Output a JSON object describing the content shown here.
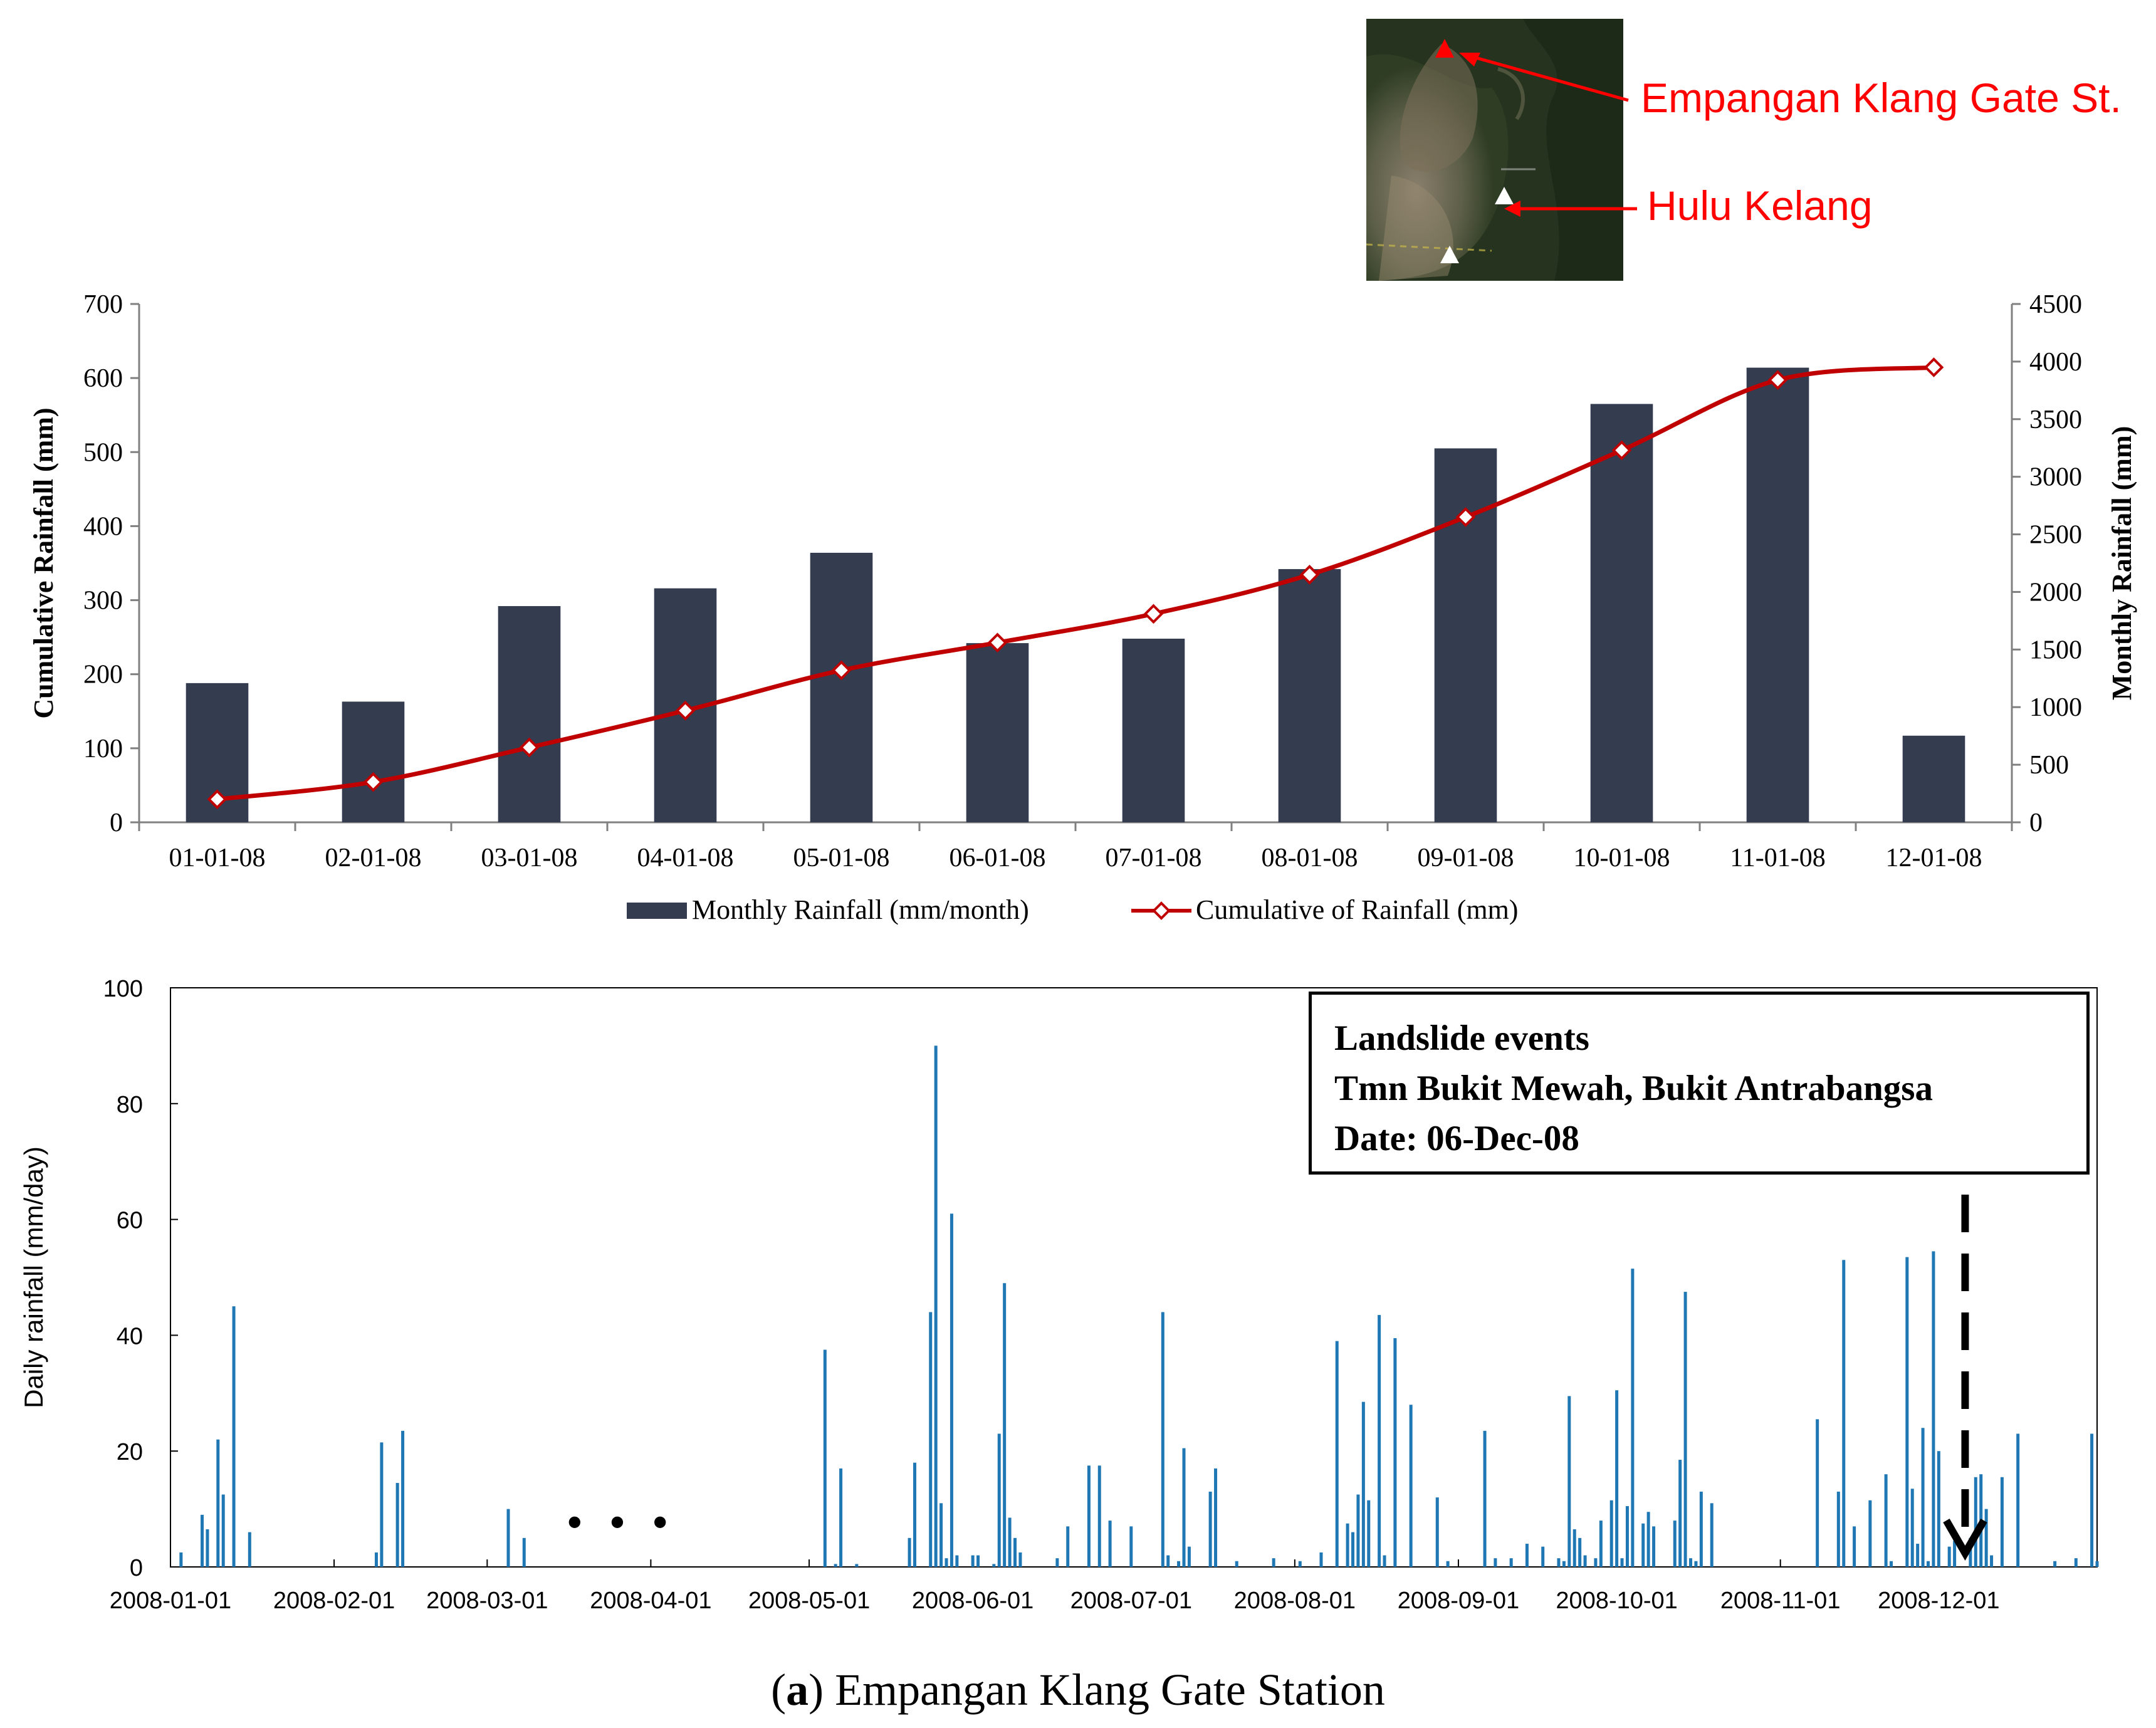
{
  "figure": {
    "caption_prefix": "(",
    "caption_letter": "a",
    "caption_rest": ") Empangan Klang Gate Station"
  },
  "map_inset": {
    "callouts": [
      "Empangan Klang Gate St.",
      "Hulu Kelang"
    ],
    "marker_color": "#ff0000",
    "station_marker_color": "#ffffff"
  },
  "event_box": {
    "line1": "Landslide events",
    "line2": "Tmn Bukit Mewah, Bukit Antrabangsa",
    "line3": "Date: 06-Dec-08"
  },
  "chart_data": [
    {
      "type": "bar",
      "title": "",
      "categories": [
        "01-01-08",
        "02-01-08",
        "03-01-08",
        "04-01-08",
        "05-01-08",
        "06-01-08",
        "07-01-08",
        "08-01-08",
        "09-01-08",
        "10-01-08",
        "11-01-08",
        "12-01-08"
      ],
      "series": [
        {
          "name": "Monthly Rainfall (mm/month)",
          "axis": "left",
          "type": "bar",
          "color": "#333d4f",
          "values": [
            188,
            163,
            292,
            316,
            364,
            242,
            248,
            342,
            505,
            565,
            614,
            117
          ]
        },
        {
          "name": "Cumulative of Rainfall (mm)",
          "axis": "right",
          "type": "line",
          "color": "#c00000",
          "values": [
            200,
            350,
            650,
            970,
            1320,
            1560,
            1810,
            2150,
            2650,
            3230,
            3840,
            3950
          ]
        }
      ],
      "ylabel_left": "Cumulative Rainfall (mm)",
      "ylabel_right": "Monthly Rainfall (mm)",
      "ylim_left": [
        0,
        700
      ],
      "yticks_left": [
        "0",
        "100",
        "200",
        "300",
        "400",
        "500",
        "600",
        "700"
      ],
      "ylim_right": [
        0,
        4500
      ],
      "yticks_right": [
        "0",
        "500",
        "1000",
        "1500",
        "2000",
        "2500",
        "3000",
        "3500",
        "4000",
        "4500"
      ],
      "legend_position": "bottom"
    },
    {
      "type": "bar",
      "title": "",
      "xlabel": "",
      "ylabel": "Daily rainfall (mm/day)",
      "ylim": [
        0,
        100
      ],
      "yticks": [
        "0",
        "20",
        "40",
        "60",
        "80",
        "100"
      ],
      "xlim": [
        0,
        365
      ],
      "xtick_labels": [
        "2008-01-01",
        "2008-02-01",
        "2008-03-01",
        "2008-04-01",
        "2008-05-01",
        "2008-06-01",
        "2008-07-01",
        "2008-08-01",
        "2008-09-01",
        "2008-10-01",
        "2008-11-01",
        "2008-12-01"
      ],
      "xtick_days": [
        0,
        31,
        60,
        91,
        121,
        152,
        182,
        213,
        244,
        274,
        305,
        335
      ],
      "color": "#1f77b4",
      "gap_marker": "• • •",
      "event_arrow_day": 340,
      "days": [
        2,
        6,
        7,
        9,
        10,
        12,
        15,
        39,
        40,
        43,
        44,
        64,
        67,
        124,
        126,
        127,
        130,
        140,
        141,
        144,
        145,
        146,
        147,
        148,
        149,
        152,
        153,
        156,
        157,
        158,
        159,
        160,
        161,
        168,
        170,
        174,
        176,
        178,
        182,
        188,
        189,
        191,
        192,
        193,
        197,
        198,
        202,
        209,
        214,
        218,
        221,
        223,
        224,
        225,
        226,
        227,
        229,
        230,
        232,
        235,
        240,
        242,
        249,
        251,
        254,
        257,
        260,
        263,
        264,
        265,
        266,
        267,
        268,
        270,
        271,
        273,
        274,
        275,
        276,
        277,
        279,
        280,
        281,
        285,
        286,
        287,
        288,
        289,
        290,
        292,
        312,
        316,
        317,
        319,
        322,
        325,
        326,
        329,
        330,
        331,
        332,
        333,
        334,
        335,
        337,
        338,
        341,
        342,
        343,
        344,
        345,
        347,
        350,
        357,
        361,
        364,
        365
      ],
      "values": [
        2.5,
        9,
        6.5,
        22,
        12.5,
        45,
        6,
        2.5,
        21.5,
        14.5,
        23.5,
        10,
        5,
        37.5,
        0.5,
        17,
        0.5,
        5,
        18,
        44,
        90,
        11,
        1.5,
        61,
        2,
        2,
        2,
        0.5,
        23,
        49,
        8.5,
        5,
        2.5,
        1.5,
        7,
        17.5,
        17.5,
        8,
        7,
        44,
        2,
        1,
        20.5,
        3.5,
        13,
        17,
        1,
        1.5,
        1,
        2.5,
        39,
        7.5,
        6,
        12.5,
        28.5,
        11.5,
        43.5,
        2,
        39.5,
        28,
        12,
        1,
        23.5,
        1.5,
        1.5,
        4,
        3.5,
        1.5,
        1,
        29.5,
        6.5,
        5,
        2,
        1.5,
        8,
        11.5,
        30.5,
        1.5,
        10.5,
        51.5,
        7.5,
        9.5,
        7,
        8,
        18.5,
        47.5,
        1.5,
        1,
        13,
        11,
        25.5,
        13,
        53,
        7,
        11.5,
        16,
        1,
        53.5,
        13.5,
        4,
        24,
        1,
        54.5,
        20,
        3.5,
        4.5,
        5,
        15.5,
        16,
        10,
        2,
        15.5,
        23,
        1,
        1.5,
        23,
        1
      ]
    }
  ]
}
